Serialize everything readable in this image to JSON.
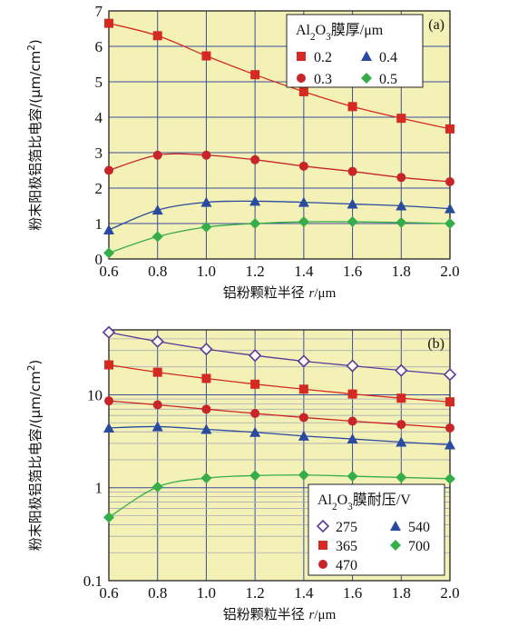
{
  "chart_data": [
    {
      "type": "line",
      "panel_label": "(a)",
      "xlabel": "铝粉颗粒半径 r/μm",
      "ylabel": "粉末阳极铝箔比电容/(μm/cm²)",
      "xlim": [
        0.6,
        2.0
      ],
      "ylim": [
        0,
        7
      ],
      "xticks": [
        "0.6",
        "0.8",
        "1.0",
        "1.2",
        "1.4",
        "1.6",
        "1.8",
        "2.0"
      ],
      "yticks": [
        "0",
        "1",
        "2",
        "3",
        "4",
        "5",
        "6",
        "7"
      ],
      "grid": true,
      "legend": {
        "title": "Al₂O₃膜厚/μm",
        "placement": "top-right"
      },
      "x": [
        0.6,
        0.8,
        1.0,
        1.2,
        1.4,
        1.6,
        1.8,
        2.0
      ],
      "series": [
        {
          "name": "0.2",
          "marker": "square",
          "color": "#d42a22",
          "values": [
            6.65,
            6.3,
            5.73,
            5.2,
            4.72,
            4.3,
            3.97,
            3.67
          ]
        },
        {
          "name": "0.3",
          "marker": "circle",
          "color": "#c8252a",
          "values": [
            2.5,
            2.93,
            2.93,
            2.8,
            2.62,
            2.47,
            2.3,
            2.18
          ]
        },
        {
          "name": "0.4",
          "marker": "triangle",
          "color": "#2a4aa0",
          "values": [
            0.82,
            1.38,
            1.6,
            1.63,
            1.6,
            1.55,
            1.5,
            1.42
          ]
        },
        {
          "name": "0.5",
          "marker": "diamond",
          "color": "#35ad4a",
          "values": [
            0.17,
            0.63,
            0.9,
            1.0,
            1.05,
            1.05,
            1.03,
            1.0
          ]
        }
      ]
    },
    {
      "type": "line",
      "panel_label": "(b)",
      "xlabel": "铝粉颗粒半径 r/μm",
      "ylabel": "粉末阳极铝箔比电容/(μm/cm²)",
      "xlim": [
        0.6,
        2.0
      ],
      "ylim": [
        0.1,
        50
      ],
      "yscale": "log",
      "xticks": [
        "0.6",
        "0.8",
        "1.0",
        "1.2",
        "1.4",
        "1.6",
        "1.8",
        "2.0"
      ],
      "yticks": [
        "0.1",
        "1",
        "10"
      ],
      "grid": true,
      "legend": {
        "title": "Al₂O₃膜耐压/V",
        "placement": "bottom-right"
      },
      "x": [
        0.6,
        0.8,
        1.0,
        1.2,
        1.4,
        1.6,
        1.8,
        2.0
      ],
      "series": [
        {
          "name": "275",
          "marker": "diamond-open",
          "color": "#5a3a9a",
          "values": [
            47.0,
            37.5,
            31.0,
            26.5,
            23.0,
            20.5,
            18.3,
            16.5
          ]
        },
        {
          "name": "365",
          "marker": "square",
          "color": "#d42a22",
          "values": [
            21.0,
            17.5,
            15.0,
            13.0,
            11.5,
            10.2,
            9.2,
            8.4
          ]
        },
        {
          "name": "470",
          "marker": "circle",
          "color": "#c8252a",
          "values": [
            8.6,
            7.8,
            7.0,
            6.3,
            5.7,
            5.2,
            4.8,
            4.4
          ]
        },
        {
          "name": "540",
          "marker": "triangle",
          "color": "#2a4aa0",
          "values": [
            4.4,
            4.55,
            4.25,
            3.95,
            3.6,
            3.35,
            3.1,
            2.9
          ]
        },
        {
          "name": "700",
          "marker": "diamond",
          "color": "#35ad4a",
          "values": [
            0.48,
            1.02,
            1.27,
            1.35,
            1.37,
            1.33,
            1.29,
            1.25
          ]
        }
      ]
    }
  ]
}
